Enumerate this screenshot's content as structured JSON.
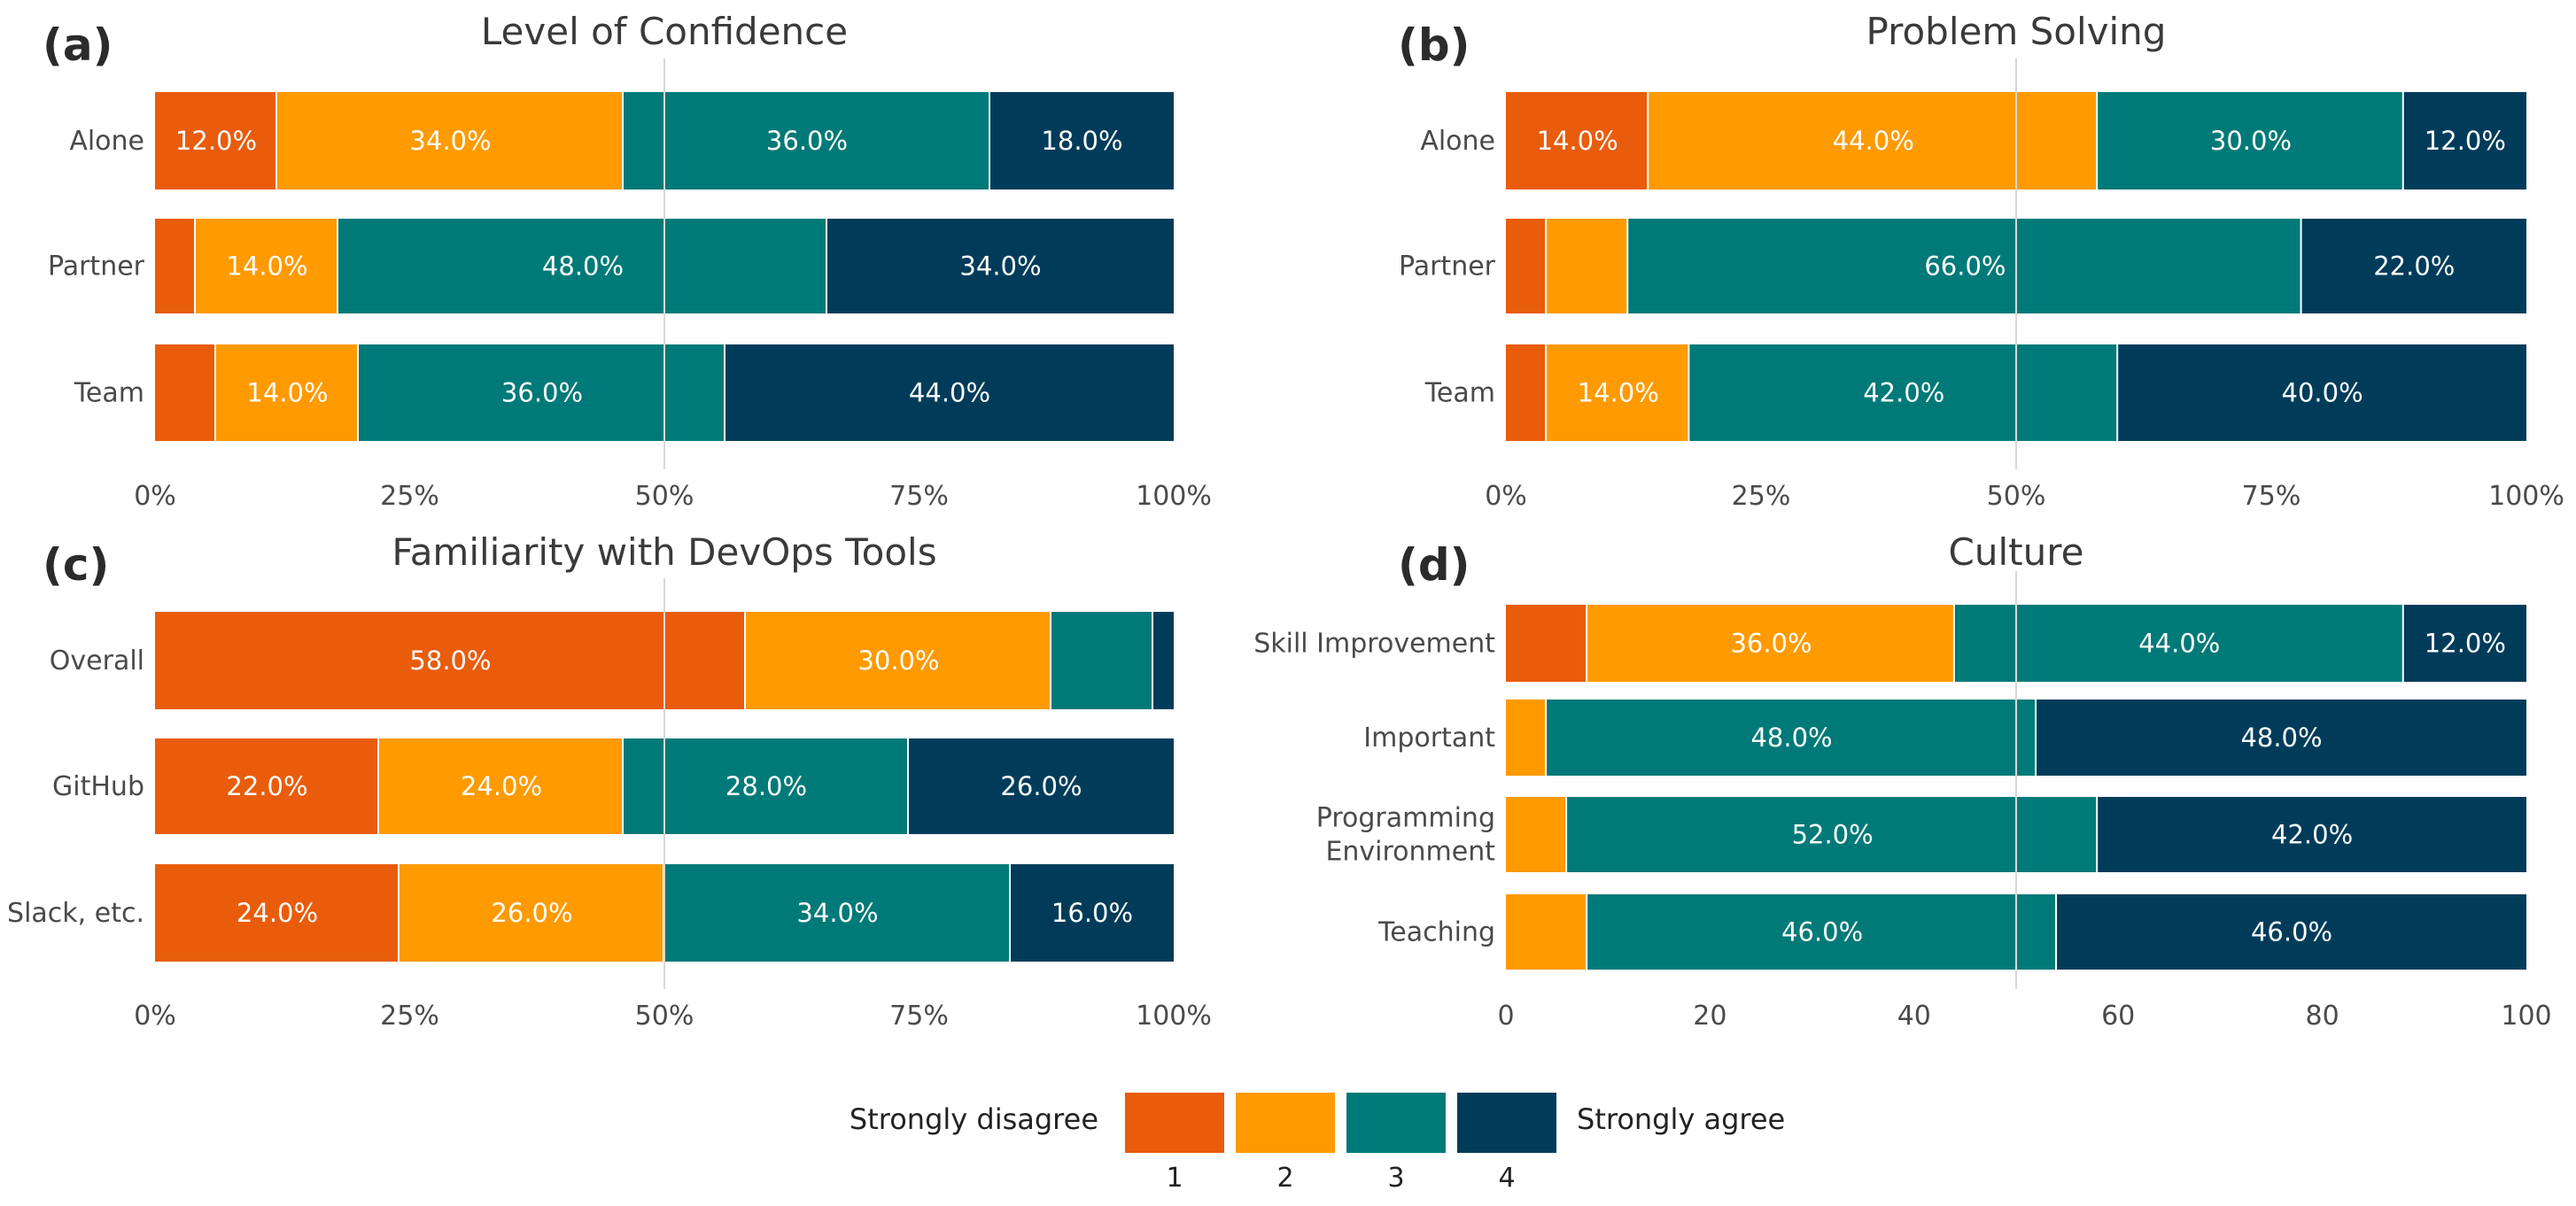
{
  "colors": [
    "#E95C0C",
    "#FF9A00",
    "#007A78",
    "#003C5A"
  ],
  "legend": {
    "left_label": "Strongly disagree",
    "right_label": "Strongly agree",
    "levels": [
      "1",
      "2",
      "3",
      "4"
    ]
  },
  "chart_data": [
    {
      "type": "bar",
      "orientation": "horizontal-stacked",
      "panel": "(a)",
      "title": "Level of Confidence",
      "categories": [
        "Alone",
        "Partner",
        "Team"
      ],
      "series": [
        {
          "name": "1",
          "values": [
            12,
            4,
            6
          ]
        },
        {
          "name": "2",
          "values": [
            34,
            14,
            14
          ]
        },
        {
          "name": "3",
          "values": [
            36,
            48,
            36
          ]
        },
        {
          "name": "4",
          "values": [
            18,
            34,
            44
          ]
        }
      ],
      "xlim": [
        0,
        100
      ],
      "xticks": [
        "0%",
        "25%",
        "50%",
        "75%",
        "100%"
      ],
      "midline": 50
    },
    {
      "type": "bar",
      "orientation": "horizontal-stacked",
      "panel": "(b)",
      "title": "Problem Solving",
      "categories": [
        "Alone",
        "Partner",
        "Team"
      ],
      "series": [
        {
          "name": "1",
          "values": [
            14,
            4,
            4
          ]
        },
        {
          "name": "2",
          "values": [
            44,
            8,
            14
          ]
        },
        {
          "name": "3",
          "values": [
            30,
            66,
            42
          ]
        },
        {
          "name": "4",
          "values": [
            12,
            22,
            40
          ]
        }
      ],
      "xlim": [
        0,
        100
      ],
      "xticks": [
        "0%",
        "25%",
        "50%",
        "75%",
        "100%"
      ],
      "midline": 50
    },
    {
      "type": "bar",
      "orientation": "horizontal-stacked",
      "panel": "(c)",
      "title": "Familiarity with DevOps Tools",
      "categories": [
        "Overall",
        "GitHub",
        "Slack, etc."
      ],
      "series": [
        {
          "name": "1",
          "values": [
            58,
            22,
            24
          ]
        },
        {
          "name": "2",
          "values": [
            30,
            24,
            26
          ]
        },
        {
          "name": "3",
          "values": [
            10,
            28,
            34
          ]
        },
        {
          "name": "4",
          "values": [
            2,
            26,
            16
          ]
        }
      ],
      "xlim": [
        0,
        100
      ],
      "xticks": [
        "0%",
        "25%",
        "50%",
        "75%",
        "100%"
      ],
      "midline": 50
    },
    {
      "type": "bar",
      "orientation": "horizontal-stacked",
      "panel": "(d)",
      "title": "Culture",
      "categories": [
        "Skill Improvement",
        "Important",
        "Programming\nEnvironment",
        "Teaching"
      ],
      "series": [
        {
          "name": "1",
          "values": [
            8,
            0,
            0,
            0
          ]
        },
        {
          "name": "2",
          "values": [
            36,
            4,
            6,
            8
          ]
        },
        {
          "name": "3",
          "values": [
            44,
            48,
            52,
            46
          ]
        },
        {
          "name": "4",
          "values": [
            12,
            48,
            42,
            46
          ]
        }
      ],
      "xlim": [
        0,
        100
      ],
      "xticks": [
        "0",
        "20",
        "40",
        "60",
        "80",
        "100"
      ],
      "midline": 50
    }
  ]
}
